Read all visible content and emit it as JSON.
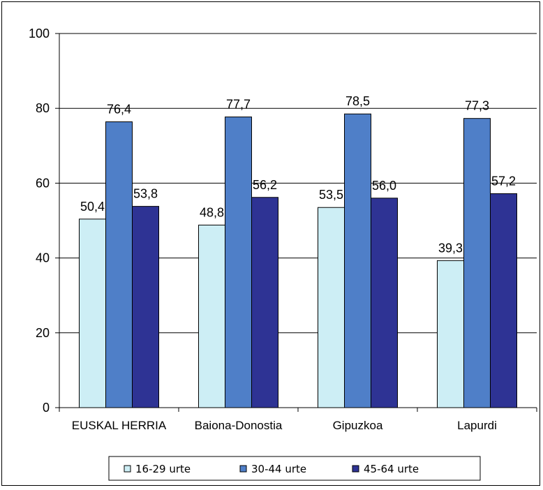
{
  "chart_data": {
    "type": "bar",
    "categories": [
      "EUSKAL HERRIA",
      "Baiona-Donostia",
      "Gipuzkoa",
      "Lapurdi"
    ],
    "series": [
      {
        "name": "16-29 urte",
        "values": [
          50.4,
          48.8,
          53.5,
          39.3
        ],
        "labels": [
          "50,4",
          "48,8",
          "53,5",
          "39,3"
        ],
        "color": "#cdeef5"
      },
      {
        "name": "30-44 urte",
        "values": [
          76.4,
          77.7,
          78.5,
          77.3
        ],
        "labels": [
          "76,4",
          "77,7",
          "78,5",
          "77,3"
        ],
        "color": "#4f7fc8"
      },
      {
        "name": "45-64 urte",
        "values": [
          53.8,
          56.2,
          56.0,
          57.2
        ],
        "labels": [
          "53,8",
          "56,2",
          "56,0",
          "57,2"
        ],
        "color": "#2e3394"
      }
    ],
    "ylim": [
      0,
      100
    ],
    "yticks": [
      "0",
      "20",
      "40",
      "60",
      "80",
      "100"
    ],
    "grid": true,
    "legend_position": "bottom",
    "title": "",
    "xlabel": "",
    "ylabel": ""
  }
}
